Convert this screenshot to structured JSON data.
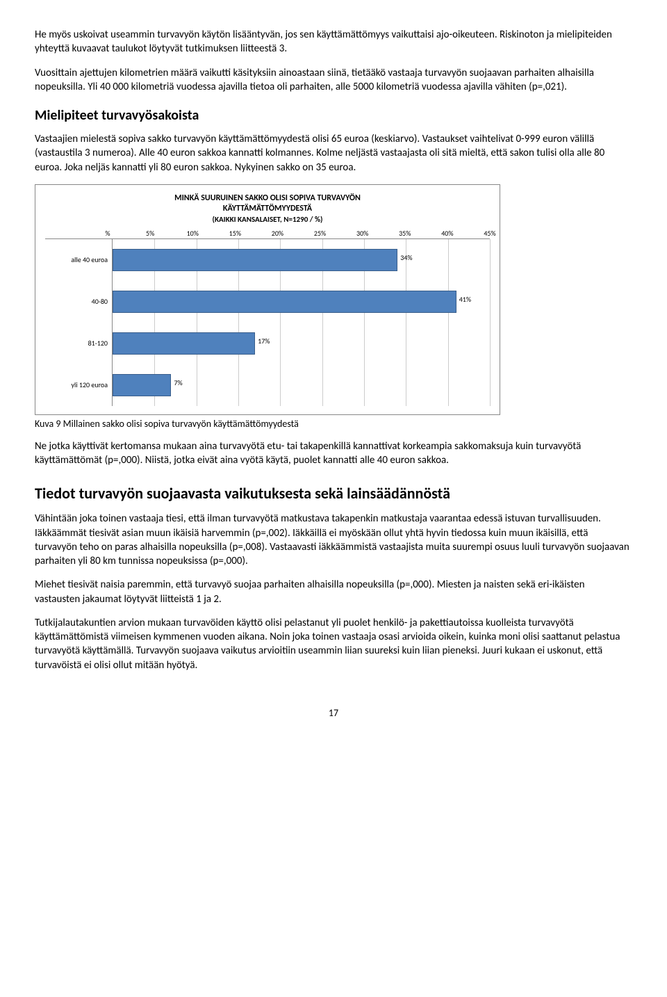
{
  "para1": "He myös uskoivat useammin turvavyön käytön lisääntyvän, jos sen käyttämättömyys vaikuttaisi ajo-oikeuteen. Riskinoton ja mielipiteiden yhteyttä kuvaavat taulukot löytyvät tutkimuksen liitteestä 3.",
  "para2": "Vuosittain ajettujen kilometrien määrä vaikutti käsityksiin ainoastaan siinä, tietääkö vastaaja turvavyön suojaavan parhaiten alhaisilla nopeuksilla. Yli 40 000 kilometriä vuodessa ajavilla tietoa oli parhaiten, alle 5000 kilometriä vuodessa ajavilla vähiten (p=,021).",
  "section1_title": "Mielipiteet turvavyösakoista",
  "para3": "Vastaajien mielestä sopiva sakko turvavyön käyttämättömyydestä olisi 65 euroa (keskiarvo). Vastaukset vaihtelivat 0-999 euron välillä (vastaustila 3 numeroa). Alle 40 euron sakkoa kannatti kolmannes. Kolme neljästä vastaajasta oli sitä mieltä, että sakon tulisi olla alle 80 euroa. Joka neljäs kannatti yli 80 euron sakkoa. Nykyinen sakko on 35 euroa.",
  "chart": {
    "type": "bar",
    "title_line1": "MINKÄ SUURUINEN SAKKO OLISI SOPIVA TURVAVYÖN",
    "title_line2": "KÄYTTÄMÄTTÖMYYDESTÄ",
    "title_line3": "(KAIKKI KANSALAISET, N=1290 / %)",
    "x_ticks": [
      "%",
      "5%",
      "10%",
      "15%",
      "20%",
      "25%",
      "30%",
      "35%",
      "40%",
      "45%"
    ],
    "x_max": 45,
    "categories": [
      "alle 40 euroa",
      "40-80",
      "81-120",
      "yli 120 euroa"
    ],
    "values": [
      34,
      41,
      17,
      7
    ],
    "value_labels": [
      "34%",
      "41%",
      "17%",
      "7%"
    ],
    "bar_color": "#4f81bd",
    "bar_border": "#385d8a",
    "grid_color": "#cccccc",
    "background": "#ffffff",
    "label_fontsize": 10,
    "title_fontsize": 12
  },
  "caption": "Kuva 9 Millainen sakko olisi sopiva turvavyön käyttämättömyydestä",
  "para4": "Ne jotka käyttivät kertomansa mukaan aina turvavyötä etu- tai takapenkillä kannattivat korkeampia sakkomaksuja kuin turvavyötä käyttämättömät (p=,000). Niistä, jotka eivät aina vyötä käytä, puolet kannatti alle 40 euron sakkoa.",
  "section2_title": "Tiedot turvavyön suojaavasta vaikutuksesta sekä lainsäädännöstä",
  "para5": "Vähintään joka toinen vastaaja tiesi, että ilman turvavyötä matkustava takapenkin matkustaja vaarantaa edessä istuvan turvallisuuden. Iäkkäämmät tiesivät asian muun ikäisiä harvemmin (p=,002). Iäkkäillä ei myöskään ollut yhtä hyvin tiedossa kuin muun ikäisillä, että turvavyön teho on paras alhaisilla nopeuksilla (p=,008). Vastaavasti iäkkäämmistä vastaajista muita suurempi osuus luuli turvavyön suojaavan parhaiten yli 80 km tunnissa nopeuksissa (p=,000).",
  "para6": "Miehet tiesivät naisia paremmin, että turvavyö suojaa parhaiten alhaisilla nopeuksilla (p=,000). Miesten ja naisten sekä eri-ikäisten vastausten jakaumat löytyvät liitteistä 1 ja 2.",
  "para7": "Tutkijalautakuntien arvion mukaan turvavöiden käyttö olisi pelastanut yli puolet henkilö- ja pakettiautoissa kuolleista turvavyötä käyttämättömistä viimeisen kymmenen vuoden aikana. Noin joka toinen vastaaja osasi arvioida oikein, kuinka moni olisi saattanut pelastua turvavyötä käyttämällä. Turvavyön suojaava vaikutus arvioitiin useammin liian suureksi kuin liian pieneksi. Juuri kukaan ei uskonut, että turvavöistä ei olisi ollut mitään hyötyä.",
  "page_number": "17"
}
